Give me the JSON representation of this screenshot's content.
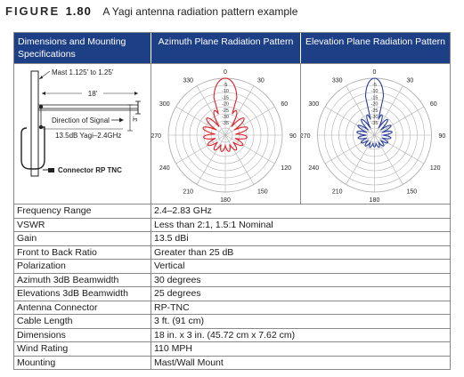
{
  "caption": {
    "label": "FIGURE",
    "number": "1.80",
    "title": "A Yagi antenna radiation pattern example"
  },
  "headers": {
    "dimensions": "Dimensions and Mounting Specifications",
    "azimuth": "Azimuth Plane Radiation Pattern",
    "elevation": "Elevation Plane Radiation Pattern"
  },
  "antenna_diagram": {
    "mast_label": "Mast 1.125' to 1.25'",
    "length_label": "18'",
    "signal_label": "Direction of Signal",
    "height_label": "3'",
    "model_label": "13.5dB Yagi–2.4GHz",
    "connector_label": "Connector RP TNC"
  },
  "polar": {
    "angle_labels": [
      "0",
      "30",
      "60",
      "90",
      "120",
      "150",
      "180",
      "210",
      "240",
      "270",
      "300",
      "330"
    ],
    "ring_labels": [
      "-5",
      "-10",
      "-15",
      "-20",
      "-25",
      "-30",
      "-35"
    ],
    "azimuth_color": "#e0202a",
    "elevation_color": "#2a3f9a"
  },
  "specs": [
    {
      "key": "Frequency Range",
      "value": "2.4–2.83 GHz"
    },
    {
      "key": "VSWR",
      "value": "Less than 2:1, 1.5:1 Nominal"
    },
    {
      "key": "Gain",
      "value": "13.5 dBi"
    },
    {
      "key": "Front to Back Ratio",
      "value": "Greater than 25 dB"
    },
    {
      "key": "Polarization",
      "value": "Vertical"
    },
    {
      "key": "Azimuth 3dB Beamwidth",
      "value": "30 degrees"
    },
    {
      "key": "Elevations 3dB Beamwidth",
      "value": "25 degrees"
    },
    {
      "key": "Antenna Connector",
      "value": "RP-TNC"
    },
    {
      "key": "Cable Length",
      "value": "3 ft. (91 cm)"
    },
    {
      "key": "Dimensions",
      "value": "18 in. x 3 in. (45.72 cm x 7.62 cm)"
    },
    {
      "key": "Wind Rating",
      "value": "110 MPH"
    },
    {
      "key": "Mounting",
      "value": "Mast/Wall Mount"
    }
  ]
}
